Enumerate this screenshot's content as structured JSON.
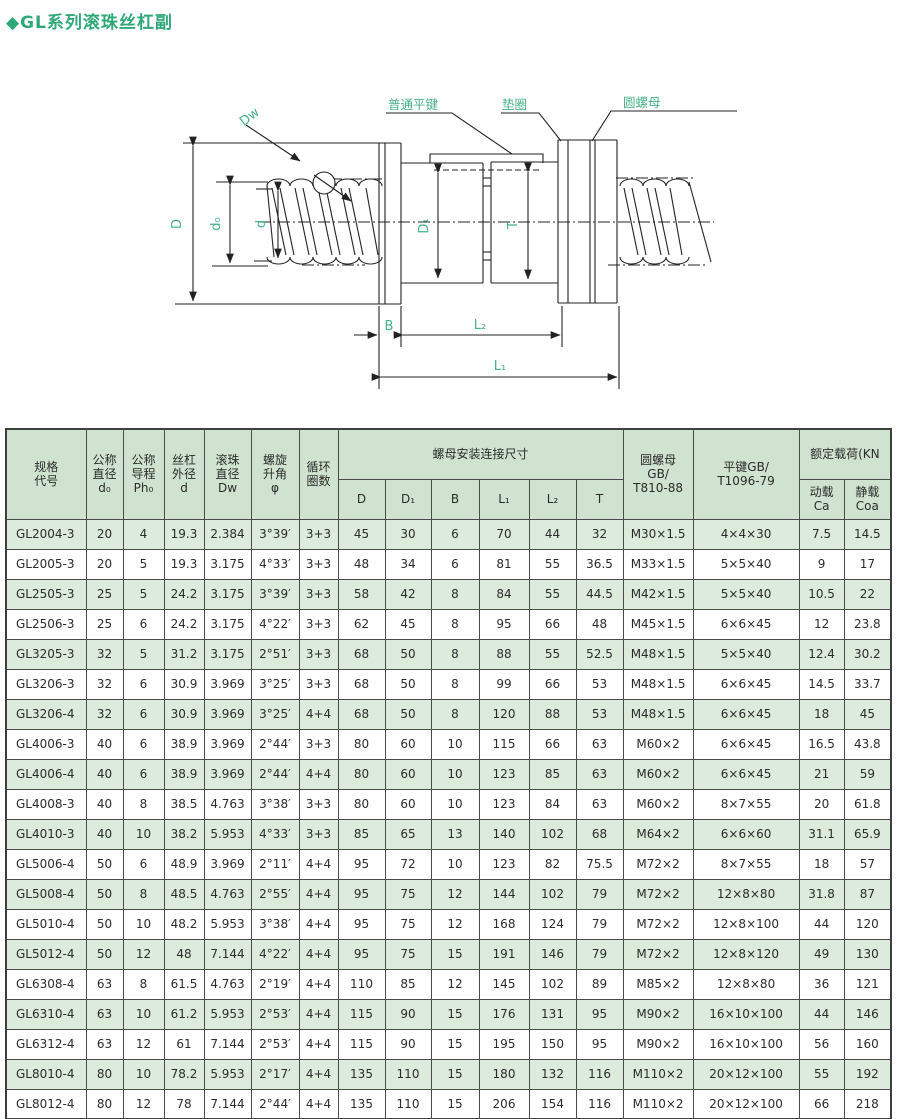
{
  "title": "◆GL系列滚珠丝杠副",
  "colors": {
    "title_green": "#2fa878",
    "diagram_label_green": "#45b287",
    "header_bg": "#d0e3d0",
    "row_stripe": "#dcebdc",
    "border": "#4a4a4a",
    "line": "#222222"
  },
  "diagram": {
    "part_labels": {
      "flat_key": "普通平键",
      "washer": "垫圈",
      "round_nut": "圆螺母"
    },
    "dim_labels": {
      "dw": "Dw",
      "D": "D",
      "d0": "d₀",
      "d": "d",
      "D1": "D₁",
      "T": "T",
      "B": "B",
      "L2": "L₂",
      "L1": "L₁"
    }
  },
  "table": {
    "headers": {
      "spec": "规格\n代号",
      "d0": "公称\n直径\nd₀",
      "ph0": "公称\n导程\nPh₀",
      "d": "丝杠\n外径\nd",
      "dw": "滚珠\n直径\nDw",
      "phi": "螺旋\n升角\nφ",
      "circuits": "循环\n圈数",
      "mount": "螺母安装连接尺寸",
      "mount_sub": [
        "D",
        "D₁",
        "B",
        "L₁",
        "L₂",
        "T"
      ],
      "round_nut": "圆螺母\nGB/\nT810-88",
      "flat_key": "平键GB/\nT1096-79",
      "load": "额定载荷(KN",
      "load_sub": [
        "动载\nCa",
        "静载\nCoa"
      ]
    },
    "rows": [
      [
        "GL2004-3",
        "20",
        "4",
        "19.3",
        "2.384",
        "3°39′",
        "3+3",
        "45",
        "30",
        "6",
        "70",
        "44",
        "32",
        "M30×1.5",
        "4×4×30",
        "7.5",
        "14.5"
      ],
      [
        "GL2005-3",
        "20",
        "5",
        "19.3",
        "3.175",
        "4°33′",
        "3+3",
        "48",
        "34",
        "6",
        "81",
        "55",
        "36.5",
        "M33×1.5",
        "5×5×40",
        "9",
        "17"
      ],
      [
        "GL2505-3",
        "25",
        "5",
        "24.2",
        "3.175",
        "3°39′",
        "3+3",
        "58",
        "42",
        "8",
        "84",
        "55",
        "44.5",
        "M42×1.5",
        "5×5×40",
        "10.5",
        "22"
      ],
      [
        "GL2506-3",
        "25",
        "6",
        "24.2",
        "3.175",
        "4°22′",
        "3+3",
        "62",
        "45",
        "8",
        "95",
        "66",
        "48",
        "M45×1.5",
        "6×6×45",
        "12",
        "23.8"
      ],
      [
        "GL3205-3",
        "32",
        "5",
        "31.2",
        "3.175",
        "2°51′",
        "3+3",
        "68",
        "50",
        "8",
        "88",
        "55",
        "52.5",
        "M48×1.5",
        "5×5×40",
        "12.4",
        "30.2"
      ],
      [
        "GL3206-3",
        "32",
        "6",
        "30.9",
        "3.969",
        "3°25′",
        "3+3",
        "68",
        "50",
        "8",
        "99",
        "66",
        "53",
        "M48×1.5",
        "6×6×45",
        "14.5",
        "33.7"
      ],
      [
        "GL3206-4",
        "32",
        "6",
        "30.9",
        "3.969",
        "3°25′",
        "4+4",
        "68",
        "50",
        "8",
        "120",
        "88",
        "53",
        "M48×1.5",
        "6×6×45",
        "18",
        "45"
      ],
      [
        "GL4006-3",
        "40",
        "6",
        "38.9",
        "3.969",
        "2°44′",
        "3+3",
        "80",
        "60",
        "10",
        "115",
        "66",
        "63",
        "M60×2",
        "6×6×45",
        "16.5",
        "43.8"
      ],
      [
        "GL4006-4",
        "40",
        "6",
        "38.9",
        "3.969",
        "2°44′",
        "4+4",
        "80",
        "60",
        "10",
        "123",
        "85",
        "63",
        "M60×2",
        "6×6×45",
        "21",
        "59"
      ],
      [
        "GL4008-3",
        "40",
        "8",
        "38.5",
        "4.763",
        "3°38′",
        "3+3",
        "80",
        "60",
        "10",
        "123",
        "84",
        "63",
        "M60×2",
        "8×7×55",
        "20",
        "61.8"
      ],
      [
        "GL4010-3",
        "40",
        "10",
        "38.2",
        "5.953",
        "4°33′",
        "3+3",
        "85",
        "65",
        "13",
        "140",
        "102",
        "68",
        "M64×2",
        "6×6×60",
        "31.1",
        "65.9"
      ],
      [
        "GL5006-4",
        "50",
        "6",
        "48.9",
        "3.969",
        "2°11′",
        "4+4",
        "95",
        "72",
        "10",
        "123",
        "82",
        "75.5",
        "M72×2",
        "8×7×55",
        "18",
        "57"
      ],
      [
        "GL5008-4",
        "50",
        "8",
        "48.5",
        "4.763",
        "2°55′",
        "4+4",
        "95",
        "75",
        "12",
        "144",
        "102",
        "79",
        "M72×2",
        "12×8×80",
        "31.8",
        "87"
      ],
      [
        "GL5010-4",
        "50",
        "10",
        "48.2",
        "5.953",
        "3°38′",
        "4+4",
        "95",
        "75",
        "12",
        "168",
        "124",
        "79",
        "M72×2",
        "12×8×100",
        "44",
        "120"
      ],
      [
        "GL5012-4",
        "50",
        "12",
        "48",
        "7.144",
        "4°22′",
        "4+4",
        "95",
        "75",
        "15",
        "191",
        "146",
        "79",
        "M72×2",
        "12×8×120",
        "49",
        "130"
      ],
      [
        "GL6308-4",
        "63",
        "8",
        "61.5",
        "4.763",
        "2°19′",
        "4+4",
        "110",
        "85",
        "12",
        "145",
        "102",
        "89",
        "M85×2",
        "12×8×80",
        "36",
        "121"
      ],
      [
        "GL6310-4",
        "63",
        "10",
        "61.2",
        "5.953",
        "2°53′",
        "4+4",
        "115",
        "90",
        "15",
        "176",
        "131",
        "95",
        "M90×2",
        "16×10×100",
        "44",
        "146"
      ],
      [
        "GL6312-4",
        "63",
        "12",
        "61",
        "7.144",
        "2°53′",
        "4+4",
        "115",
        "90",
        "15",
        "195",
        "150",
        "95",
        "M90×2",
        "16×10×100",
        "56",
        "160"
      ],
      [
        "GL8010-4",
        "80",
        "10",
        "78.2",
        "5.953",
        "2°17′",
        "4+4",
        "135",
        "110",
        "15",
        "180",
        "132",
        "116",
        "M110×2",
        "20×12×100",
        "55",
        "192"
      ],
      [
        "GL8012-4",
        "80",
        "12",
        "78",
        "7.144",
        "2°44′",
        "4+4",
        "135",
        "110",
        "15",
        "206",
        "154",
        "116",
        "M110×2",
        "20×12×100",
        "66",
        "218"
      ]
    ]
  }
}
